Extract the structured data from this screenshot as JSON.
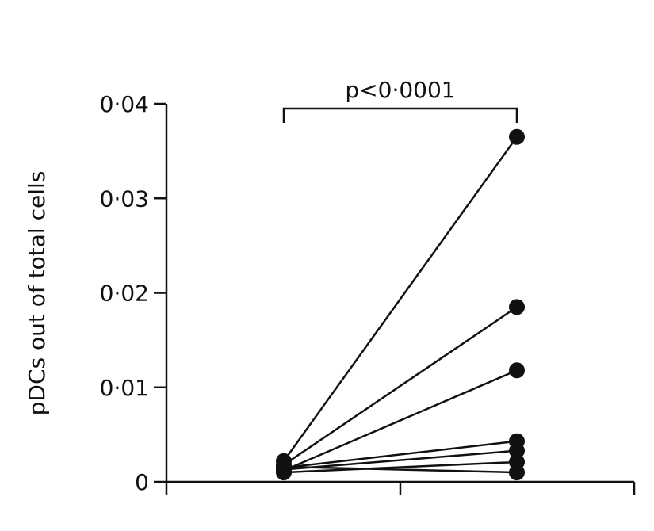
{
  "chart_data": {
    "type": "line",
    "title": "",
    "xlabel": "",
    "ylabel": "pDCs out of total cells",
    "ylim": [
      0,
      0.04
    ],
    "yticks": [
      {
        "value": 0,
        "label": "0"
      },
      {
        "value": 0.01,
        "label": "0·01"
      },
      {
        "value": 0.02,
        "label": "0·02"
      },
      {
        "value": 0.03,
        "label": "0·03"
      },
      {
        "value": 0.04,
        "label": "0·04"
      }
    ],
    "x_positions": [
      1,
      2
    ],
    "categories": [
      "",
      ""
    ],
    "grid": false,
    "legend": "none",
    "series": [
      {
        "values": [
          0.0022,
          0.0365
        ]
      },
      {
        "values": [
          0.0018,
          0.0185
        ]
      },
      {
        "values": [
          0.0012,
          0.0118
        ]
      },
      {
        "values": [
          0.0015,
          0.0043
        ]
      },
      {
        "values": [
          0.0013,
          0.0033
        ]
      },
      {
        "values": [
          0.001,
          0.0021
        ]
      },
      {
        "values": [
          0.0016,
          0.001
        ]
      }
    ],
    "annotation": {
      "text": "p<0·0001"
    }
  },
  "colors": {
    "line": "#111111",
    "marker": "#111111"
  }
}
